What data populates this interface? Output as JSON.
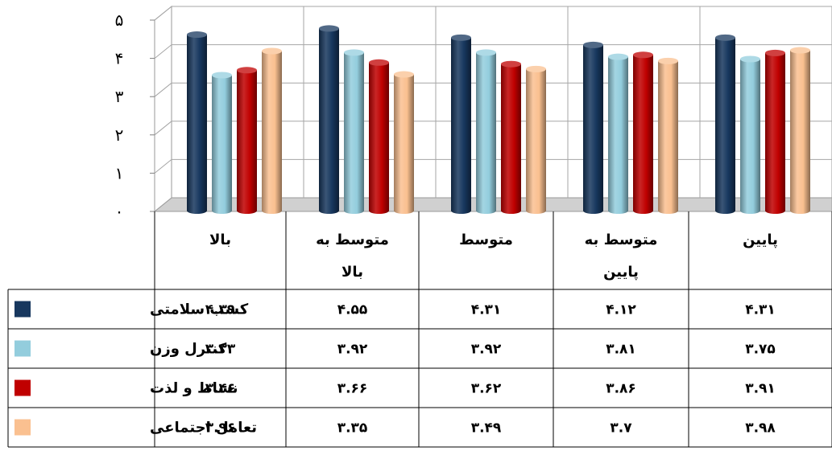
{
  "chart_data": {
    "type": "bar",
    "categories": [
      "بالا",
      "متوسط به بالا",
      "متوسط",
      "متوسط به پایین",
      "پایین"
    ],
    "category_lines": [
      [
        "بالا"
      ],
      [
        "متوسط به",
        "بالا"
      ],
      [
        "متوسط"
      ],
      [
        "متوسط به",
        "پایین"
      ],
      [
        "پایین"
      ]
    ],
    "series": [
      {
        "name": "کسب سلامتی",
        "color": "#17375e",
        "values": [
          4.39,
          4.55,
          4.31,
          4.12,
          4.31
        ],
        "labels": [
          "۴.۳۹",
          "۴.۵۵",
          "۴.۳۱",
          "۴.۱۲",
          "۴.۳۱"
        ]
      },
      {
        "name": "کنترل وزن",
        "color": "#93cddd",
        "values": [
          3.33,
          3.92,
          3.92,
          3.81,
          3.75
        ],
        "labels": [
          "۳.۳۳",
          "۳.۹۲",
          "۳.۹۲",
          "۳.۸۱",
          "۳.۷۵"
        ]
      },
      {
        "name": "نشاط و لذت",
        "color": "#c00000",
        "values": [
          3.46,
          3.66,
          3.62,
          3.86,
          3.91
        ],
        "labels": [
          "۳.۴۶",
          "۳.۶۶",
          "۳.۶۲",
          "۳.۸۶",
          "۳.۹۱"
        ]
      },
      {
        "name": "تعامل اجتماعی",
        "color": "#fac090",
        "values": [
          3.96,
          3.35,
          3.49,
          3.7,
          3.98
        ],
        "labels": [
          "۳.۹۶",
          "۳.۳۵",
          "۳.۴۹",
          "۳.۷",
          "۳.۹۸"
        ]
      }
    ],
    "yticks": [
      "۰",
      "۱",
      "۲",
      "۳",
      "۴",
      "۵"
    ],
    "ylim": [
      0,
      5
    ],
    "grid": true,
    "legend": "data-table-left"
  }
}
